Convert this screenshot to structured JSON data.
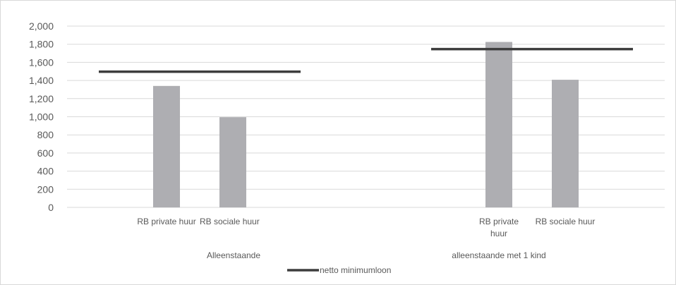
{
  "chart_data": {
    "type": "bar",
    "groups": [
      {
        "label": "Alleenstaande",
        "bars": [
          {
            "label": "RB private huur",
            "value": 1340
          },
          {
            "label": "RB sociale huur",
            "value": 995
          }
        ],
        "netto_minimumloon": 1497
      },
      {
        "label": "alleenstaande met 1 kind",
        "bars": [
          {
            "label": "RB private huur",
            "value": 1825
          },
          {
            "label": "RB sociale huur",
            "value": 1408
          }
        ],
        "netto_minimumloon": 1746
      }
    ],
    "y_ticks": [
      "0",
      "200",
      "400",
      "600",
      "800",
      "1,000",
      "1,200",
      "1,400",
      "1,600",
      "1,800",
      "2,000"
    ],
    "ylim": [
      0,
      2000
    ],
    "legend": {
      "line_label": "netto minimumloon",
      "position": "bottom"
    },
    "grid": true,
    "colors": {
      "bar": "#aeaeb2",
      "line": "#3d3d3d",
      "grid": "#d9d9d9",
      "text": "#595959"
    }
  }
}
